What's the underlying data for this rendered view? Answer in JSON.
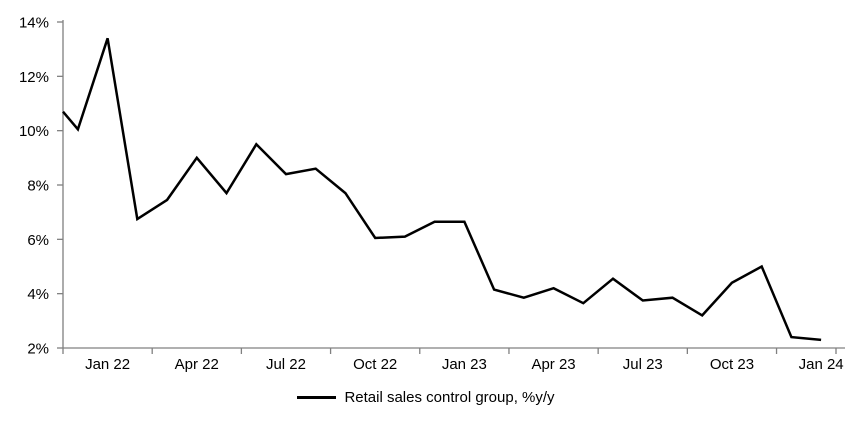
{
  "chart_data": {
    "type": "line",
    "title": "",
    "xlabel": "",
    "ylabel": "",
    "ylim": [
      2,
      14
    ],
    "y_tick_step": 2,
    "y_tick_labels": [
      "2%",
      "4%",
      "6%",
      "8%",
      "10%",
      "12%",
      "14%"
    ],
    "x_tick_labels": [
      "Jan 22",
      "Apr 22",
      "Jul 22",
      "Oct 22",
      "Jan 23",
      "Apr 23",
      "Jul 23",
      "Oct 23",
      "Jan 24"
    ],
    "grid": false,
    "legend_position": "bottom-center",
    "axis_color": "#808080",
    "background_color": "#ffffff",
    "categories": [
      "Jan 22",
      "Feb 22",
      "Mar 22",
      "Apr 22",
      "May 22",
      "Jun 22",
      "Jul 22",
      "Aug 22",
      "Sep 22",
      "Oct 22",
      "Nov 22",
      "Dec 22",
      "Jan 23",
      "Feb 23",
      "Mar 23",
      "Apr 23",
      "May 23",
      "Jun 23",
      "Jul 23",
      "Aug 23",
      "Sep 23",
      "Oct 23",
      "Nov 23",
      "Dec 23",
      "Jan 24",
      "Feb 24"
    ],
    "series": [
      {
        "name": "Retail sales control group, %y/y",
        "color": "#000000",
        "line_width": 2.5,
        "lead_in_edge_value": 10.7,
        "values": [
          10.05,
          13.4,
          6.75,
          7.45,
          9.0,
          7.7,
          9.5,
          8.4,
          8.6,
          7.7,
          6.05,
          6.1,
          6.65,
          6.65,
          4.15,
          3.85,
          4.2,
          3.65,
          4.55,
          3.75,
          3.85,
          3.2,
          4.4,
          5.0,
          2.4,
          2.3
        ]
      }
    ]
  },
  "legend": {
    "label": "Retail sales control group, %y/y"
  }
}
